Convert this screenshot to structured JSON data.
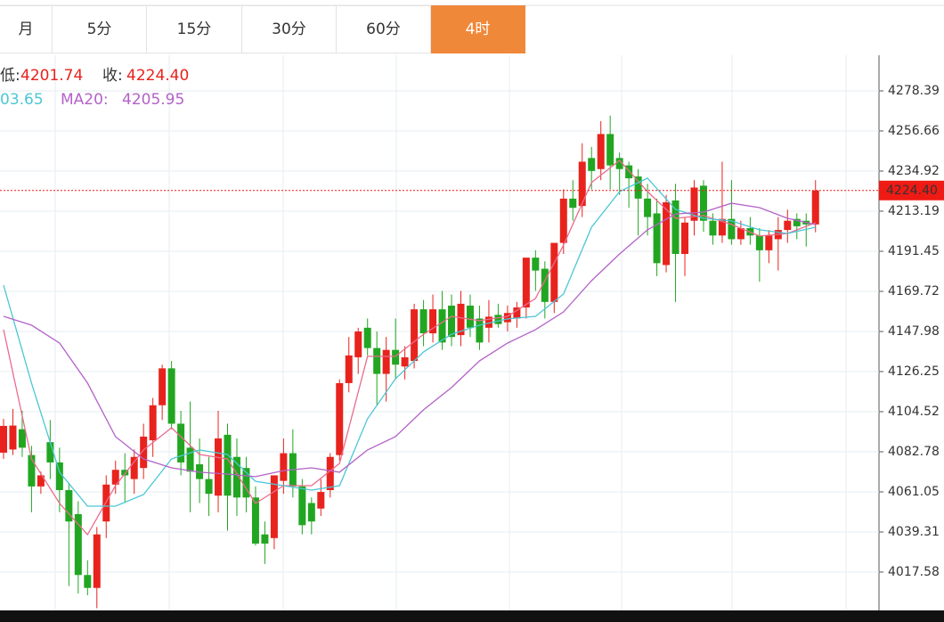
{
  "tabs": [
    "月",
    "5分",
    "15分",
    "30分",
    "60分",
    "4时"
  ],
  "active_tab": 5,
  "legend": {
    "low_label": "低:",
    "low": "4201.74",
    "close_label": "收:",
    "close": "4224.40",
    "ma10_value": "03.65",
    "ma20_label": "MA20:",
    "ma20_value": "4205.95"
  },
  "chart_data": {
    "type": "candlestick",
    "up_color": "#e8231d",
    "down_color": "#22a622",
    "xlim": [
      -0.38,
      93.8
    ],
    "ylim": [
      3996.8,
      4297.7
    ],
    "yticks": [
      4278.39,
      4256.66,
      4234.92,
      4213.19,
      4191.45,
      4169.72,
      4147.98,
      4126.25,
      4104.52,
      4082.78,
      4061.05,
      4039.31,
      4017.58
    ],
    "grid": true,
    "last_price": {
      "value": 4224.4,
      "label": "4224.40"
    },
    "last_price_color": "#f01a14",
    "open": [
      4082.3,
      4084,
      4095,
      4081,
      4064,
      4088,
      4077,
      4062,
      4049,
      4016,
      4009,
      4045,
      4065,
      4073,
      4068,
      4074,
      4089,
      4108,
      4128,
      4098,
      4085,
      4076,
      4068,
      4059,
      4092,
      4080,
      4074,
      4058,
      4038,
      4036,
      4067,
      4082,
      4064,
      4055,
      4052,
      4062,
      4081,
      4120,
      4134,
      4150,
      4139,
      4125,
      4138,
      4129,
      4132,
      4160,
      4147,
      4160,
      4162,
      4146,
      4162,
      4155,
      4150,
      4157,
      4153,
      4155,
      4161,
      4188,
      4182,
      4164,
      4196,
      4220,
      4216,
      4242,
      4236,
      4255,
      4242,
      4238,
      4232,
      4220,
      4212,
      4184,
      4219,
      4190,
      4208,
      4227,
      4208,
      4200,
      4209,
      4198,
      4204,
      4200,
      4192,
      4198,
      4203,
      4209,
      4208,
      4206
    ],
    "high": [
      4100.6,
      4106,
      4105,
      4086,
      4072,
      4100,
      4085,
      4066,
      4056,
      4024,
      4042,
      4070,
      4078,
      4082,
      4084,
      4098,
      4112,
      4130,
      4132,
      4105,
      4110,
      4090,
      4080,
      4105,
      4098,
      4090,
      4080,
      4064,
      4045,
      4070,
      4090,
      4095,
      4068,
      4058,
      4068,
      4082,
      4122,
      4145,
      4150,
      4155,
      4148,
      4145,
      4155,
      4140,
      4163,
      4165,
      4168,
      4170,
      4168,
      4170,
      4168,
      4162,
      4165,
      4163,
      4162,
      4164,
      4188,
      4192,
      4186,
      4196,
      4225,
      4230,
      4250,
      4248,
      4262,
      4265,
      4245,
      4240,
      4236,
      4228,
      4220,
      4222,
      4228,
      4210,
      4230,
      4230,
      4212,
      4240,
      4230,
      4208,
      4210,
      4204,
      4203,
      4210,
      4214,
      4212,
      4212,
      4230
    ],
    "low": [
      4078.9,
      4081,
      4080,
      4050,
      4060,
      4068,
      4050,
      4010,
      4006,
      4005,
      3998,
      4036,
      4060,
      4055,
      4060,
      4068,
      4080,
      4100,
      4095,
      4070,
      4050,
      4055,
      4048,
      4050,
      4040,
      4048,
      4050,
      4032,
      4022,
      4030,
      4060,
      4058,
      4038,
      4038,
      4048,
      4058,
      4078,
      4115,
      4125,
      4135,
      4108,
      4110,
      4122,
      4122,
      4128,
      4140,
      4142,
      4138,
      4140,
      4140,
      4145,
      4138,
      4142,
      4150,
      4148,
      4150,
      4155,
      4170,
      4155,
      4158,
      4190,
      4208,
      4210,
      4225,
      4230,
      4225,
      4222,
      4215,
      4200,
      4200,
      4178,
      4180,
      4164,
      4178,
      4200,
      4202,
      4195,
      4196,
      4195,
      4195,
      4195,
      4175,
      4185,
      4181,
      4196,
      4198,
      4194,
      4201.74
    ],
    "close": [
      4096.8,
      4097,
      4085,
      4064,
      4070,
      4077,
      4062,
      4045,
      4016,
      4009,
      4038,
      4065,
      4073,
      4070,
      4080,
      4091,
      4108,
      4128,
      4098,
      4077,
      4072,
      4068,
      4060,
      4090,
      4059,
      4058,
      4058,
      4033,
      4033,
      4070,
      4082,
      4064,
      4043,
      4045,
      4061,
      4080,
      4120,
      4135,
      4148,
      4139,
      4125,
      4138,
      4130,
      4134,
      4160,
      4147,
      4160,
      4142,
      4145,
      4163,
      4150,
      4142,
      4156,
      4152,
      4158,
      4161,
      4188,
      4181,
      4164,
      4196,
      4220,
      4215,
      4240,
      4235,
      4255,
      4238,
      4236,
      4231,
      4220,
      4210,
      4185,
      4218,
      4190,
      4207,
      4226,
      4208,
      4200,
      4209,
      4198,
      4204,
      4200,
      4192,
      4200,
      4203,
      4208,
      4205,
      4206,
      4224.4
    ],
    "ma_lines": [
      {
        "color": "#ec6b8e",
        "x": [
          0,
          3,
          6,
          9,
          12,
          15,
          18,
          21,
          24,
          27,
          30,
          33,
          36,
          39,
          42,
          45,
          48,
          51,
          54,
          57,
          60,
          63,
          66,
          69,
          72,
          75,
          78,
          81,
          84,
          87
        ],
        "values": [
          4149.0,
          4078.9,
          4054.8,
          4037.9,
          4064.4,
          4083.8,
          4095.8,
          4081.3,
          4078.9,
          4054.8,
          4064.4,
          4064.4,
          4076.5,
          4134.5,
          4134.5,
          4146.5,
          4156.2,
          4153.8,
          4156.2,
          4165.9,
          4194.8,
          4228.7,
          4240.7,
          4223.8,
          4209.3,
          4210.8,
          4206.0,
          4199.7,
          4201.1,
          4206.9
        ]
      },
      {
        "color": "#4cc6d6",
        "x": [
          0,
          3,
          6,
          9,
          12,
          15,
          18,
          21,
          24,
          27,
          30,
          33,
          36,
          39,
          42,
          45,
          48,
          51,
          54,
          57,
          60,
          63,
          66,
          69,
          72,
          75,
          78,
          81,
          84,
          87
        ],
        "values": [
          4173.1,
          4120.0,
          4071.7,
          4053.3,
          4053.3,
          4059.6,
          4078.9,
          4083.8,
          4081.3,
          4066.8,
          4064.4,
          4062.0,
          4064.4,
          4100.7,
          4122.4,
          4136.9,
          4146.5,
          4151.4,
          4154.8,
          4156.2,
          4168.3,
          4204.5,
          4223.8,
          4231.1,
          4214.2,
          4209.3,
          4207.9,
          4203.1,
          4201.1,
          4204.5
        ]
      },
      {
        "color": "#b462c8",
        "x": [
          0,
          3,
          6,
          9,
          12,
          15,
          18,
          21,
          24,
          27,
          30,
          33,
          36,
          39,
          42,
          45,
          48,
          51,
          54,
          57,
          60,
          63,
          66,
          69,
          72,
          75,
          78,
          81,
          84,
          87
        ],
        "values": [
          4156.2,
          4151.4,
          4141.7,
          4120.0,
          4091.0,
          4078.9,
          4074.1,
          4071.7,
          4070.7,
          4069.3,
          4072.6,
          4074.1,
          4071.7,
          4083.8,
          4091.0,
          4105.5,
          4117.6,
          4132.1,
          4141.7,
          4149.0,
          4158.6,
          4175.5,
          4190.0,
          4203.1,
          4211.7,
          4212.7,
          4217.5,
          4215.1,
          4209.3,
          4206.0
        ]
      }
    ]
  }
}
